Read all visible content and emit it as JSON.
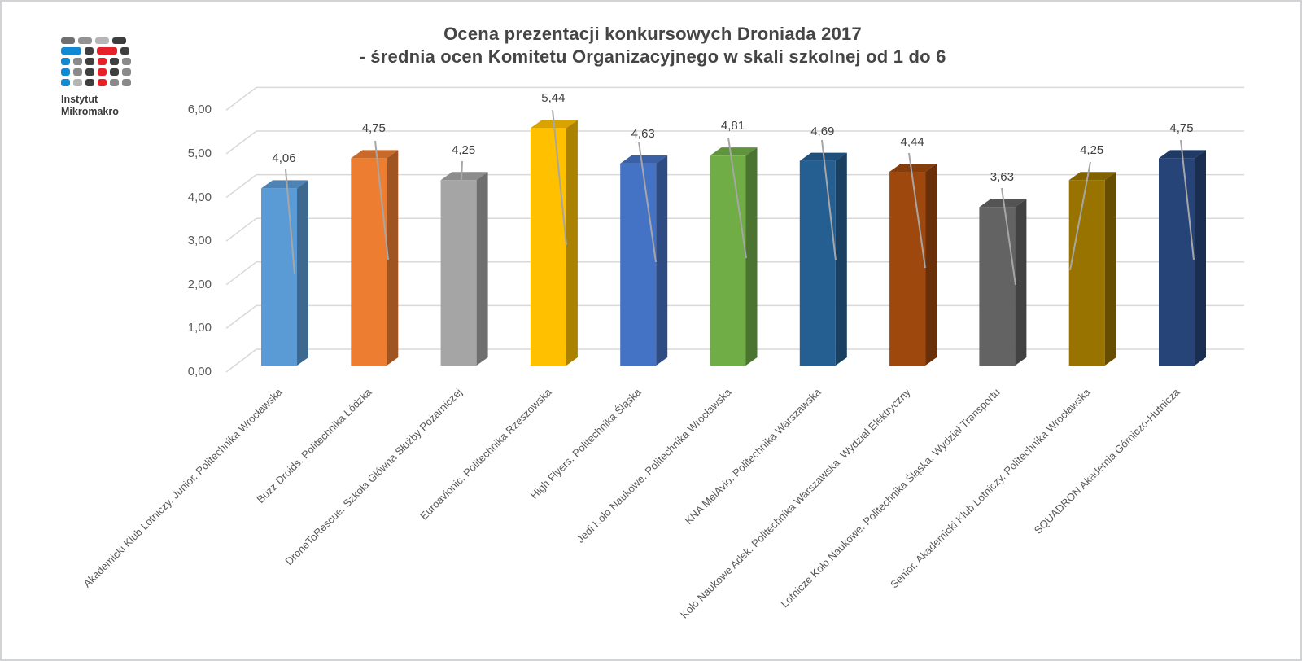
{
  "logo": {
    "line1": "Instytut",
    "line2": "Mikromakro"
  },
  "chart_data": {
    "type": "bar",
    "style": "3d-column",
    "title_line1": "Ocena prezentacji konkursowych Droniada 2017",
    "title_line2": "- średnia ocen Komitetu Organizacyjnego w skali szkolnej od 1 do 6",
    "categories": [
      "Akademicki Klub Lotniczy. Junior. Politechnika Wrocławska",
      "Buzz Droids. Politechnika Łódzka",
      "DroneToRescue. Szkoła Główna Służby Pożarniczej",
      "Euroavionic. Politechnika Rzeszowska",
      "High Flyers. Politechnika Śląska",
      "Jedi Koło Naukowe. Politechnika Wrocławska",
      "KNA MelAvio. Politechnika Warszawska",
      "Koło Naukowe Adek. Politechnika Warszawska. Wydział Elektryczny",
      "Lotnicze Koło Naukowe. Politechnika Śląska. Wydział Transportu",
      "Senior. Akademicki Klub Lotniczy. Politechnika Wrocławska",
      "SQUADRON Akademia Górniczo-Hutnicza"
    ],
    "values": [
      4.06,
      4.75,
      4.25,
      5.44,
      4.63,
      4.81,
      4.69,
      4.44,
      3.63,
      4.25,
      4.75
    ],
    "value_labels": [
      "4,06",
      "4,75",
      "4,25",
      "5,44",
      "4,63",
      "4,81",
      "4,69",
      "4,44",
      "3,63",
      "4,25",
      "4,75"
    ],
    "bar_colors": [
      "#5B9BD5",
      "#ED7D31",
      "#A5A5A5",
      "#FFC000",
      "#4472C4",
      "#70AD47",
      "#255E91",
      "#9E480E",
      "#636363",
      "#997300",
      "#264478"
    ],
    "ylim": [
      0,
      6
    ],
    "ytick_step": 1,
    "ytick_labels": [
      "0,00",
      "1,00",
      "2,00",
      "3,00",
      "4,00",
      "5,00",
      "6,00"
    ],
    "grid": true,
    "legend": "none",
    "gridline_color": "#D9D9D9",
    "leader_line_color": "#A6A6A6",
    "value_label_color": "#404040",
    "axis_label_color": "#595959"
  }
}
